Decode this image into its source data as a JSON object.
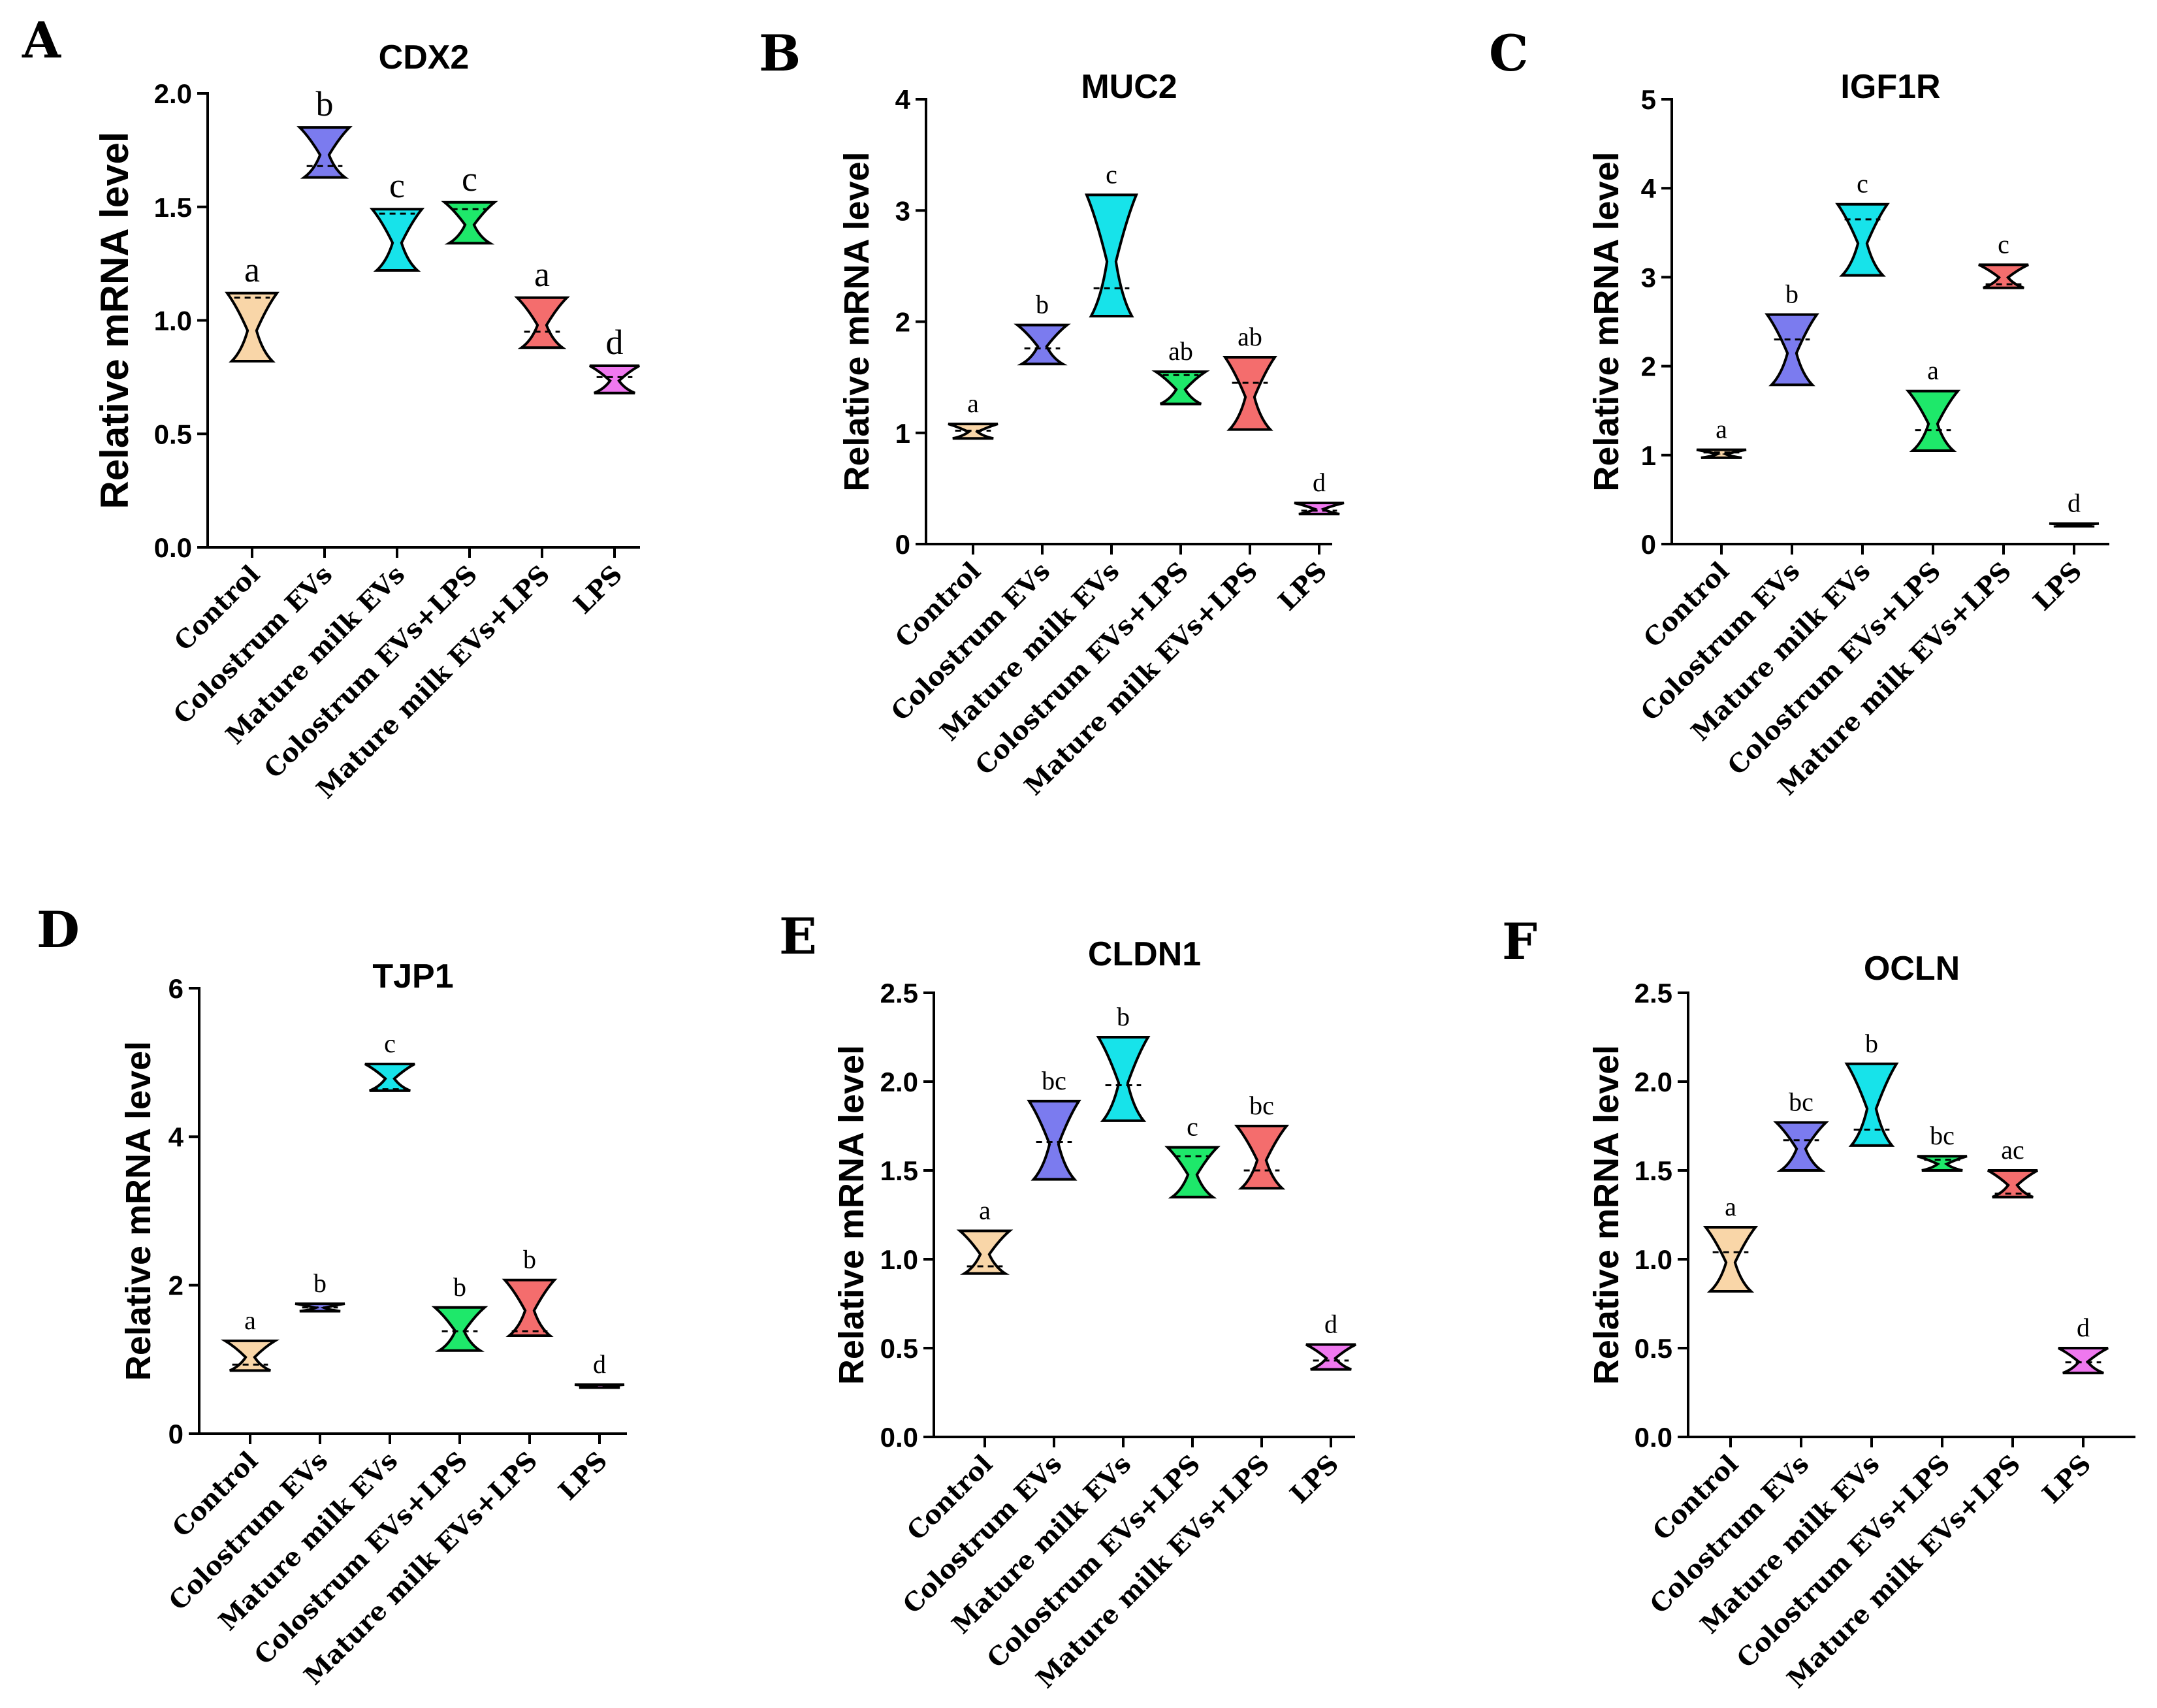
{
  "figure": {
    "categories": [
      "Control",
      "Colostrum EVs",
      "Mature milk EVs",
      "Colostrum EVs+LPS",
      "Mature milk EVs+LPS",
      "LPS"
    ],
    "colors": [
      "#f9d6a8",
      "#7b7bef",
      "#17e3ea",
      "#1ee86a",
      "#f46d6d",
      "#ef78ef"
    ],
    "ylabel": "Relative mRNA level"
  },
  "chart_data": [
    {
      "panel": "A",
      "type": "violin",
      "title": "CDX2",
      "ylabel": "Relative mRNA level",
      "ylim": [
        0,
        2.0
      ],
      "yticks": [
        "0.0",
        "0.5",
        "1.0",
        "1.5",
        "2.0"
      ],
      "categories": [
        "Control",
        "Colostrum EVs",
        "Mature milk EVs",
        "Colostrum EVs+LPS",
        "Mature milk EVs+LPS",
        "LPS"
      ],
      "min": [
        0.82,
        1.63,
        1.22,
        1.34,
        0.88,
        0.68
      ],
      "max": [
        1.12,
        1.85,
        1.49,
        1.52,
        1.1,
        0.8
      ],
      "median": [
        1.1,
        1.68,
        1.47,
        1.49,
        0.95,
        0.75
      ],
      "letters": [
        "a",
        "b",
        "c",
        "c",
        "a",
        "d"
      ]
    },
    {
      "panel": "B",
      "type": "violin",
      "title": "MUC2",
      "ylabel": "Relative mRNA level",
      "ylim": [
        0,
        4
      ],
      "yticks": [
        "0",
        "1",
        "2",
        "3",
        "4"
      ],
      "categories": [
        "Control",
        "Colostrum EVs",
        "Mature milk EVs",
        "Colostrum EVs+LPS",
        "Mature milk EVs+LPS",
        "LPS"
      ],
      "min": [
        0.95,
        1.62,
        2.05,
        1.26,
        1.03,
        0.27
      ],
      "max": [
        1.08,
        1.97,
        3.14,
        1.55,
        1.68,
        0.37
      ],
      "median": [
        1.02,
        1.76,
        2.3,
        1.52,
        1.45,
        0.3
      ],
      "letters": [
        "a",
        "b",
        "c",
        "ab",
        "ab",
        "d"
      ]
    },
    {
      "panel": "C",
      "type": "violin",
      "title": "IGF1R",
      "ylabel": "Relative mRNA level",
      "ylim": [
        0,
        5
      ],
      "yticks": [
        "0",
        "1",
        "2",
        "3",
        "4",
        "5"
      ],
      "categories": [
        "Control",
        "Colostrum EVs",
        "Mature milk EVs",
        "Colostrum EVs+LPS",
        "Mature milk EVs+LPS",
        "LPS"
      ],
      "min": [
        0.97,
        1.79,
        3.02,
        1.05,
        2.88,
        0.22
      ],
      "max": [
        1.06,
        2.58,
        3.82,
        1.72,
        3.14,
        0.23
      ],
      "median": [
        1.03,
        2.3,
        3.65,
        1.28,
        2.92,
        0.22
      ],
      "letters": [
        "a",
        "b",
        "c",
        "a",
        "c",
        "d"
      ]
    },
    {
      "panel": "D",
      "type": "violin",
      "title": "TJP1",
      "ylabel": "Relative mRNA level",
      "ylim": [
        0,
        6
      ],
      "yticks": [
        "0",
        "2",
        "4",
        "6"
      ],
      "categories": [
        "Control",
        "Colostrum EVs",
        "Mature milk EVs",
        "Colostrum EVs+LPS",
        "Mature milk EVs+LPS",
        "LPS"
      ],
      "min": [
        0.85,
        1.65,
        4.62,
        1.12,
        1.32,
        0.62
      ],
      "max": [
        1.25,
        1.75,
        4.98,
        1.7,
        2.07,
        0.66
      ],
      "median": [
        0.93,
        1.7,
        4.64,
        1.38,
        1.38,
        0.64
      ],
      "letters": [
        "a",
        "b",
        "c",
        "b",
        "b",
        "d"
      ]
    },
    {
      "panel": "E",
      "type": "violin",
      "title": "CLDN1",
      "ylabel": "Relative mRNA level",
      "ylim": [
        0,
        2.5
      ],
      "yticks": [
        "0.0",
        "0.5",
        "1.0",
        "1.5",
        "2.0",
        "2.5"
      ],
      "categories": [
        "Control",
        "Colostrum EVs",
        "Mature milk EVs",
        "Colostrum EVs+LPS",
        "Mature milk EVs+LPS",
        "LPS"
      ],
      "min": [
        0.92,
        1.45,
        1.78,
        1.35,
        1.4,
        0.38
      ],
      "max": [
        1.16,
        1.89,
        2.25,
        1.63,
        1.75,
        0.52
      ],
      "median": [
        0.96,
        1.66,
        1.98,
        1.58,
        1.5,
        0.43
      ],
      "letters": [
        "a",
        "bc",
        "b",
        "c",
        "bc",
        "d"
      ]
    },
    {
      "panel": "F",
      "type": "violin",
      "title": "OCLN",
      "ylabel": "Relative mRNA level",
      "ylim": [
        0,
        2.5
      ],
      "yticks": [
        "0.0",
        "0.5",
        "1.0",
        "1.5",
        "2.0",
        "2.5"
      ],
      "categories": [
        "Control",
        "Colostrum EVs",
        "Mature milk EVs",
        "Colostrum EVs+LPS",
        "Mature milk EVs+LPS",
        "LPS"
      ],
      "min": [
        0.82,
        1.5,
        1.64,
        1.5,
        1.35,
        0.36
      ],
      "max": [
        1.18,
        1.77,
        2.1,
        1.58,
        1.5,
        0.5
      ],
      "median": [
        1.04,
        1.67,
        1.73,
        1.56,
        1.37,
        0.42
      ],
      "letters": [
        "a",
        "bc",
        "b",
        "bc",
        "ac",
        "d"
      ]
    }
  ]
}
